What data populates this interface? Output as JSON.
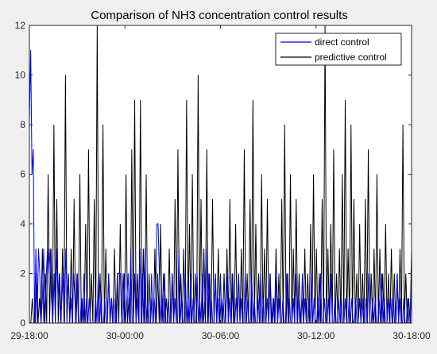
{
  "chart_data": {
    "type": "line",
    "title": "Comparison of NH3 concentration control results",
    "xlabel": "",
    "ylabel": "",
    "x_ticks": [
      "29-18:00",
      "30-00:00",
      "30-06:00",
      "30-12:00",
      "30-18:00"
    ],
    "x_range": [
      "29-18:00",
      "30-18:00"
    ],
    "ylim": [
      0,
      12
    ],
    "y_ticks": [
      0,
      2,
      4,
      6,
      8,
      10,
      12
    ],
    "grid": false,
    "legend_position": "top-right",
    "sampling_interval_minutes": 5,
    "series": [
      {
        "name": "direct control",
        "color": "#0000ff",
        "values": [
          8,
          11,
          6,
          7,
          0,
          3,
          0,
          3,
          2,
          0,
          1,
          3,
          0,
          2,
          3,
          2,
          3,
          1,
          0,
          2,
          0,
          3,
          1,
          2,
          0,
          1,
          2,
          0,
          3,
          1,
          2,
          0,
          1,
          0,
          2,
          1,
          0,
          2,
          0,
          0,
          1,
          0,
          2,
          0,
          1,
          0,
          1,
          0,
          0,
          0,
          0,
          1,
          0,
          2,
          0,
          1,
          0,
          0,
          1,
          0,
          0,
          2,
          0,
          1,
          0,
          1,
          0,
          0,
          2,
          2,
          2,
          0,
          0,
          2,
          0,
          1,
          2,
          0,
          3,
          0,
          0,
          2,
          0,
          1,
          0,
          3,
          0,
          2,
          0,
          3,
          0,
          1,
          0,
          0,
          2,
          0,
          1,
          0,
          4,
          4,
          2,
          0,
          1,
          0,
          2,
          0,
          0,
          1,
          0,
          0,
          2,
          0,
          1,
          0,
          0,
          3,
          0,
          1,
          0,
          0,
          2,
          0,
          1,
          0,
          2,
          0,
          1,
          0,
          0,
          2,
          0,
          1,
          0,
          2,
          0,
          1,
          3,
          0,
          2,
          0,
          1,
          0,
          0,
          2,
          0,
          1,
          0,
          2,
          0,
          1,
          0,
          0,
          2,
          0,
          1,
          0,
          2,
          0,
          0,
          1,
          0,
          2,
          0,
          1,
          0,
          0,
          2,
          0,
          1,
          0,
          0,
          2,
          0,
          1,
          0,
          0,
          1,
          0,
          2,
          0,
          1,
          0,
          0,
          1,
          0,
          2,
          0,
          0,
          1,
          0,
          2,
          0,
          1,
          0,
          0,
          1,
          0,
          0,
          2,
          0,
          1,
          0,
          0,
          1,
          0,
          2,
          0,
          1,
          0,
          0,
          2,
          0,
          1,
          0,
          0,
          1,
          0,
          2,
          0,
          1,
          0,
          0,
          1,
          0,
          2,
          0,
          0,
          1,
          0,
          0,
          1,
          0,
          2,
          0,
          0,
          1,
          0,
          0,
          1,
          0,
          1,
          0,
          0,
          1,
          0,
          0,
          1,
          0,
          1,
          0,
          0,
          1,
          0,
          0,
          1,
          0,
          1,
          0,
          0,
          1,
          0,
          2,
          0,
          0,
          1,
          0,
          1,
          0,
          0,
          1,
          0,
          2,
          0,
          1,
          0,
          0,
          1,
          0,
          1,
          0,
          1,
          0,
          0,
          2,
          0,
          1,
          0,
          0,
          1,
          0,
          0,
          1,
          0,
          0,
          2
        ]
      },
      {
        "name": "predictive control",
        "color": "#000000",
        "values": [
          0,
          0,
          1,
          0,
          0,
          2,
          0,
          1,
          0,
          3,
          0,
          2,
          0,
          6,
          0,
          3,
          0,
          8,
          0,
          5,
          0,
          2,
          0,
          3,
          0,
          10,
          0,
          2,
          0,
          3,
          0,
          5,
          0,
          2,
          0,
          6,
          0,
          1,
          0,
          4,
          0,
          7,
          0,
          2,
          0,
          5,
          0,
          12,
          0,
          2,
          0,
          8,
          0,
          3,
          0,
          2,
          0,
          1,
          0,
          3,
          0,
          2,
          0,
          4,
          0,
          2,
          0,
          6,
          0,
          1,
          0,
          7,
          0,
          9,
          0,
          2,
          0,
          9,
          0,
          3,
          0,
          6,
          0,
          2,
          0,
          1,
          0,
          3,
          0,
          2,
          0,
          4,
          0,
          2,
          0,
          1,
          0,
          3,
          0,
          2,
          0,
          5,
          0,
          7,
          0,
          2,
          0,
          3,
          0,
          9,
          0,
          4,
          0,
          6,
          0,
          2,
          0,
          10,
          0,
          5,
          0,
          3,
          0,
          7,
          0,
          2,
          0,
          5,
          0,
          2,
          0,
          3,
          0,
          1,
          0,
          2,
          0,
          3,
          0,
          5,
          0,
          2,
          0,
          4,
          0,
          2,
          0,
          3,
          0,
          7,
          0,
          2,
          0,
          5,
          0,
          9,
          0,
          4,
          0,
          2,
          0,
          6,
          0,
          3,
          0,
          5,
          0,
          2,
          0,
          1,
          0,
          3,
          0,
          2,
          0,
          5,
          0,
          8,
          0,
          2,
          0,
          6,
          0,
          3,
          0,
          5,
          0,
          2,
          0,
          1,
          0,
          3,
          0,
          2,
          0,
          4,
          0,
          6,
          0,
          3,
          0,
          2,
          0,
          5,
          0,
          12,
          0,
          3,
          0,
          4,
          0,
          7,
          0,
          2,
          0,
          3,
          0,
          6,
          0,
          9,
          0,
          3,
          0,
          8,
          0,
          5,
          0,
          2,
          0,
          4,
          0,
          2,
          0,
          5,
          0,
          7,
          0,
          2,
          0,
          3,
          0,
          6,
          0,
          3,
          0,
          2,
          0,
          4,
          0,
          2,
          0,
          3,
          0,
          2,
          0,
          2,
          0,
          3,
          0,
          8,
          0,
          2,
          0,
          1,
          0,
          3
        ]
      }
    ]
  }
}
